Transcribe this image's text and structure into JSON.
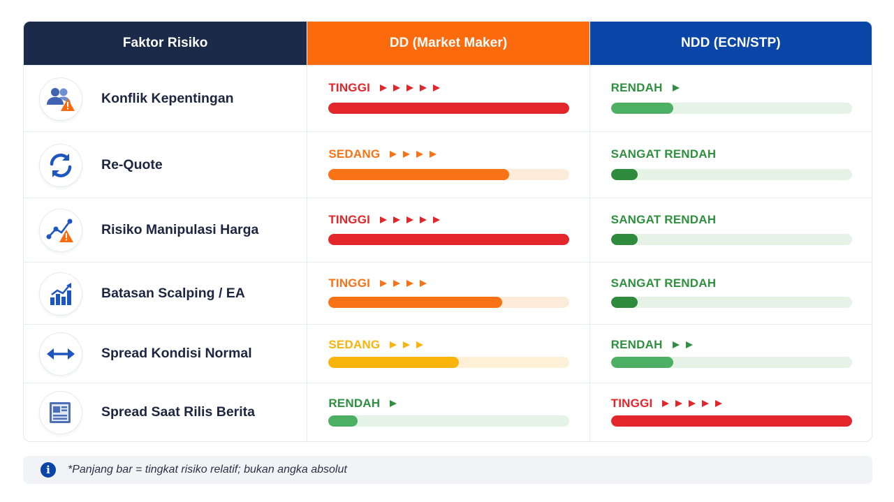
{
  "header": {
    "col1": "Faktor Risiko",
    "col2": "DD (Market Maker)",
    "col3": "NDD (ECN/STP)"
  },
  "colors": {
    "header_col1": "#1c2a49",
    "header_col2": "#fb6a0d",
    "header_col3": "#0a46a8",
    "level_red": "#e3262b",
    "level_orange": "#f97316",
    "level_amber": "#f9b40c",
    "level_green": "#2f8f3f"
  },
  "chart_data": {
    "type": "table",
    "columns": [
      "Faktor Risiko",
      "DD (Market Maker)",
      "NDD (ECN/STP)"
    ],
    "rows": [
      {
        "factor": "Konflik Kepentingan",
        "icon": "users-warning-icon",
        "dd": {
          "level": "TINGGI",
          "arrows": 5,
          "fill": 1.0,
          "color": "#e3262b",
          "track": "#fde3e3"
        },
        "ndd": {
          "level": "RENDAH",
          "arrows": 1,
          "fill": 0.26,
          "color": "#4caf64",
          "track": "#e4f3e6"
        }
      },
      {
        "factor": "Re-Quote",
        "icon": "refresh-icon",
        "dd": {
          "level": "SEDANG",
          "arrows": 4,
          "fill": 0.75,
          "color": "#f97316",
          "track": "#fdebd9"
        },
        "ndd": {
          "level": "SANGAT RENDAH",
          "arrows": 0,
          "fill": 0.11,
          "color": "#2e8b3e",
          "track": "#e4f3e6"
        }
      },
      {
        "factor": "Risiko Manipulasi Harga",
        "icon": "chart-warning-icon",
        "dd": {
          "level": "TINGGI",
          "arrows": 5,
          "fill": 1.0,
          "color": "#e3262b",
          "track": "#fde3e3"
        },
        "ndd": {
          "level": "SANGAT RENDAH",
          "arrows": 0,
          "fill": 0.11,
          "color": "#2e8b3e",
          "track": "#e4f3e6"
        }
      },
      {
        "factor": "Batasan Scalping / EA",
        "icon": "bar-chart-icon",
        "dd": {
          "level": "TINGGI",
          "arrows": 4,
          "fill": 0.72,
          "color": "#f97316",
          "track": "#fdebd9"
        },
        "ndd": {
          "level": "SANGAT RENDAH",
          "arrows": 0,
          "fill": 0.11,
          "color": "#2e8b3e",
          "track": "#e4f3e6"
        }
      },
      {
        "factor": "Spread Kondisi Normal",
        "icon": "arrows-horizontal-icon",
        "dd": {
          "level": "SEDANG",
          "arrows": 3,
          "fill": 0.54,
          "color": "#f9b40c",
          "track": "#fdf0d6"
        },
        "ndd": {
          "level": "RENDAH",
          "arrows": 2,
          "fill": 0.26,
          "color": "#4caf64",
          "track": "#e4f3e6"
        }
      },
      {
        "factor": "Spread Saat Rilis Berita",
        "icon": "newspaper-icon",
        "dd": {
          "level": "RENDAH",
          "arrows": 1,
          "fill": 0.12,
          "color": "#4caf64",
          "track": "#e4f3e6"
        },
        "ndd": {
          "level": "TINGGI",
          "arrows": 5,
          "fill": 1.0,
          "color": "#e3262b",
          "track": "#fde3e3"
        }
      }
    ]
  },
  "note": "*Panjang bar = tingkat risiko relatif; bukan angka absolut"
}
